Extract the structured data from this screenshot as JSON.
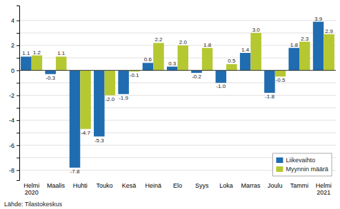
{
  "chart_data": {
    "type": "bar",
    "categories": [
      "Helmi\n2020",
      "Maalis",
      "Huhti",
      "Touko",
      "Kesä",
      "Heinä",
      "Elo",
      "Syys",
      "Loka",
      "Marras",
      "Joulu",
      "Tammi",
      "Helmi\n2021"
    ],
    "series": [
      {
        "name": "Liikevaihto",
        "color": "#1f6cb0",
        "values": [
          1.1,
          -0.3,
          -7.8,
          -5.3,
          -1.9,
          0.6,
          0.3,
          -0.2,
          -1.0,
          1.4,
          -1.8,
          1.8,
          3.9
        ],
        "value_labels": [
          "1.1",
          "-0.3",
          "-7.8",
          "-5.3",
          "-1.9",
          "0.6",
          "0.3",
          "-0.2",
          "-1.0",
          "1.4",
          "-1.8",
          "1.8",
          "3.9"
        ]
      },
      {
        "name": "Myynnin määrä",
        "color": "#b5c832",
        "values": [
          1.2,
          1.1,
          -4.7,
          -2.0,
          -0.1,
          2.2,
          2.0,
          1.8,
          0.5,
          3.0,
          -0.5,
          2.3,
          2.9
        ],
        "value_labels": [
          "1.2",
          "1.1",
          "-4.7",
          "-2.0",
          "-0.1",
          "2.2",
          "2.0",
          "1.8",
          "0.5",
          "3.0",
          "-0.5",
          "2.3",
          "2.9"
        ]
      }
    ],
    "ylim": [
      -8.8,
      5.2
    ],
    "yticks": [
      -8,
      {
        "value": -7,
        "label": ""
      },
      -6,
      {
        "value": -5,
        "label": ""
      },
      -4,
      {
        "value": -3,
        "label": ""
      },
      -2,
      {
        "value": -1,
        "label": ""
      },
      0,
      {
        "value": 1,
        "label": ""
      },
      2,
      {
        "value": 3,
        "label": ""
      },
      4
    ],
    "grid": true,
    "legend": "lower right",
    "data_labels": true,
    "annotations": [
      "Lähde: Tilastokeskus"
    ]
  }
}
